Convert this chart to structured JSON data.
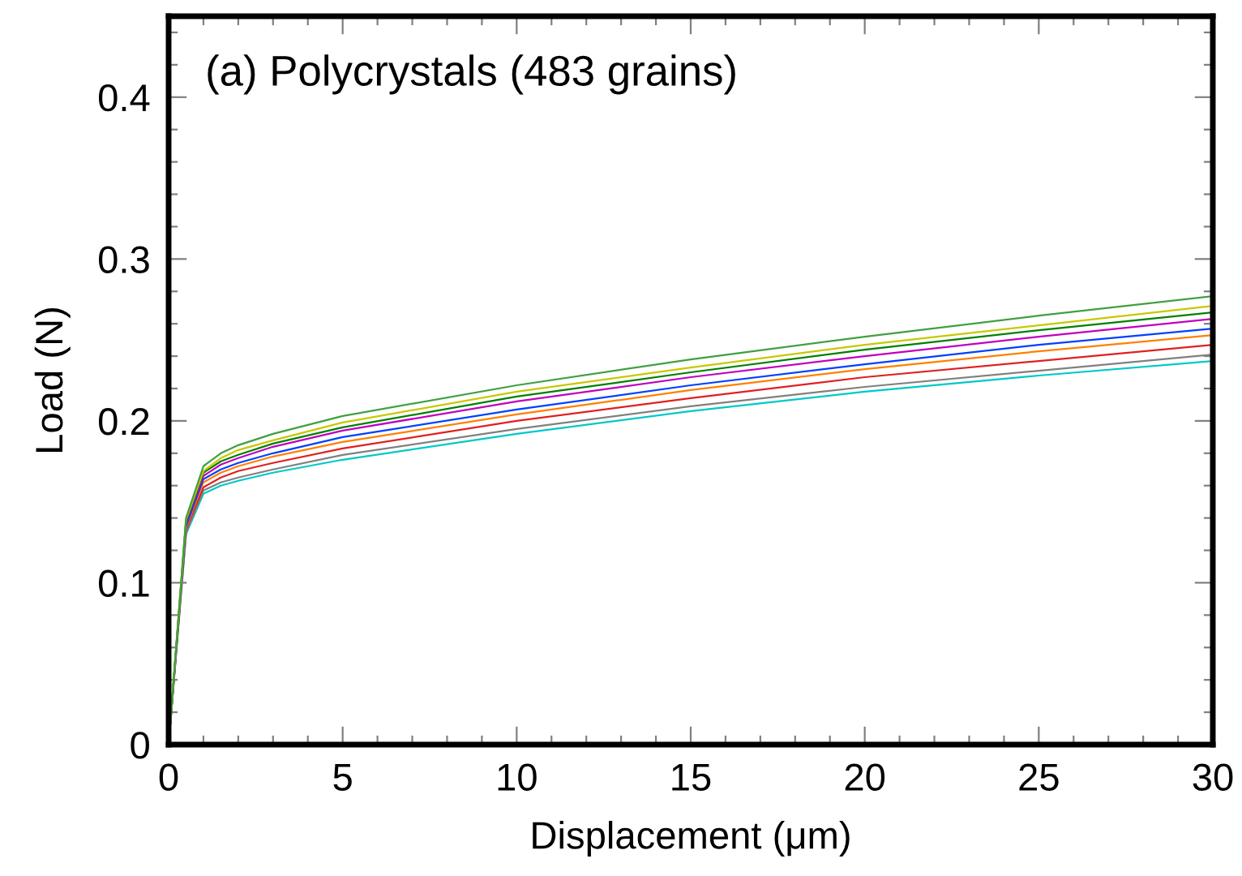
{
  "chart_data": {
    "type": "line",
    "xlabel": "Displacement (μm)",
    "ylabel": "Load (N)",
    "annotations": [
      "(a) Polycrystals (483 grains)"
    ],
    "x": [
      0,
      0.5,
      1,
      1.5,
      2,
      3,
      5,
      10,
      15,
      20,
      25,
      30
    ],
    "series": [
      {
        "color": "#00c8c8",
        "values": [
          0,
          0.13,
          0.155,
          0.16,
          0.163,
          0.168,
          0.176,
          0.192,
          0.206,
          0.218,
          0.228,
          0.237
        ]
      },
      {
        "color": "#808080",
        "values": [
          0,
          0.131,
          0.157,
          0.162,
          0.165,
          0.17,
          0.179,
          0.195,
          0.209,
          0.221,
          0.231,
          0.241
        ]
      },
      {
        "color": "#e02020",
        "values": [
          0,
          0.133,
          0.159,
          0.165,
          0.169,
          0.174,
          0.183,
          0.2,
          0.214,
          0.227,
          0.237,
          0.247
        ]
      },
      {
        "color": "#ff8000",
        "values": [
          0,
          0.134,
          0.162,
          0.168,
          0.172,
          0.178,
          0.187,
          0.204,
          0.219,
          0.232,
          0.243,
          0.253
        ]
      },
      {
        "color": "#0040ff",
        "values": [
          0,
          0.135,
          0.164,
          0.17,
          0.174,
          0.18,
          0.19,
          0.207,
          0.222,
          0.235,
          0.247,
          0.257
        ]
      },
      {
        "color": "#c000c0",
        "values": [
          0,
          0.137,
          0.166,
          0.173,
          0.177,
          0.184,
          0.194,
          0.212,
          0.227,
          0.24,
          0.252,
          0.263
        ]
      },
      {
        "color": "#008000",
        "values": [
          0,
          0.138,
          0.168,
          0.175,
          0.179,
          0.186,
          0.196,
          0.215,
          0.23,
          0.244,
          0.256,
          0.267
        ]
      },
      {
        "color": "#c8c800",
        "values": [
          0,
          0.139,
          0.169,
          0.177,
          0.182,
          0.188,
          0.199,
          0.218,
          0.233,
          0.247,
          0.259,
          0.271
        ]
      },
      {
        "color": "#40a040",
        "values": [
          0,
          0.14,
          0.172,
          0.18,
          0.185,
          0.192,
          0.203,
          0.222,
          0.238,
          0.252,
          0.265,
          0.277
        ]
      }
    ],
    "xlim": [
      0,
      30
    ],
    "xticks": [
      0,
      5,
      10,
      15,
      20,
      25,
      30
    ],
    "ylim": [
      0,
      0.45
    ],
    "yticks": [
      0,
      0.1,
      0.2,
      0.3,
      0.4
    ],
    "grid": false,
    "legend": false,
    "marker": "none",
    "line_style": "solid"
  }
}
